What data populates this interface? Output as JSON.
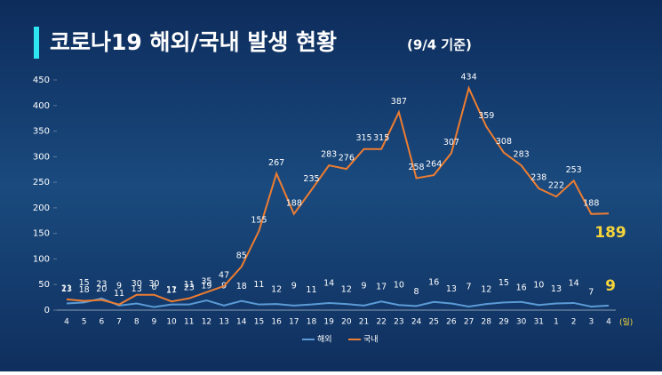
{
  "chart_data": {
    "type": "line",
    "title": "코로나19 해외/국내 발생 현황",
    "subtitle": "(9/4 기준)",
    "x_unit": "(일)",
    "categories": [
      "4",
      "5",
      "6",
      "7",
      "8",
      "9",
      "10",
      "11",
      "12",
      "13",
      "14",
      "15",
      "16",
      "17",
      "18",
      "19",
      "20",
      "21",
      "22",
      "23",
      "24",
      "25",
      "26",
      "27",
      "28",
      "29",
      "30",
      "31",
      "1",
      "2",
      "3",
      "4"
    ],
    "series": [
      {
        "name": "해외",
        "color": "#5b9bd5",
        "values": [
          13,
          15,
          23,
          9,
          13,
          6,
          11,
          11,
          19,
          9,
          18,
          11,
          12,
          9,
          11,
          14,
          12,
          9,
          17,
          10,
          8,
          16,
          13,
          7,
          12,
          15,
          16,
          10,
          13,
          14,
          7,
          9
        ]
      },
      {
        "name": "국내",
        "color": "#ed7d31",
        "values": [
          21,
          18,
          20,
          11,
          30,
          30,
          17,
          23,
          35,
          47,
          85,
          155,
          267,
          188,
          235,
          283,
          276,
          315,
          315,
          387,
          258,
          264,
          307,
          434,
          359,
          308,
          283,
          238,
          222,
          253,
          188,
          189
        ]
      }
    ],
    "ylim": [
      0,
      450
    ],
    "yticks": [
      0,
      50,
      100,
      150,
      200,
      250,
      300,
      350,
      400,
      450
    ],
    "grid": false,
    "legend": "bottom"
  }
}
